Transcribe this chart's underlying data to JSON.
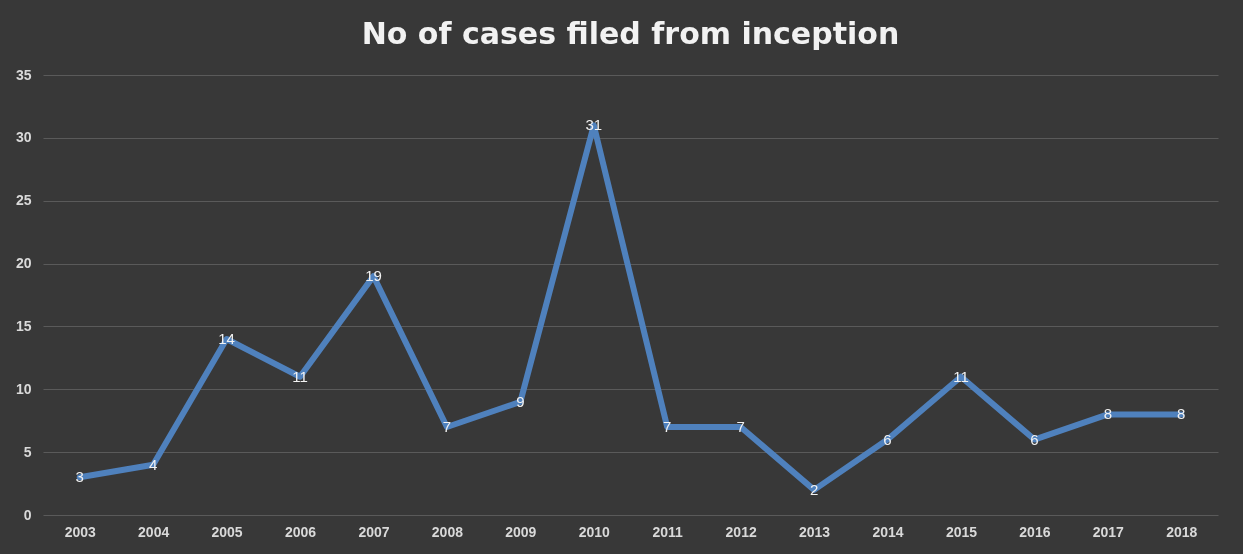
{
  "chart_data": {
    "type": "line",
    "title": "No of cases filed  from inception",
    "categories": [
      "2003",
      "2004",
      "2005",
      "2006",
      "2007",
      "2008",
      "2009",
      "2010",
      "2011",
      "2012",
      "2013",
      "2014",
      "2015",
      "2016",
      "2017",
      "2018"
    ],
    "series": [
      {
        "color": "#4f81bd",
        "values": [
          3,
          4,
          14,
          11,
          19,
          7,
          9,
          31,
          7,
          7,
          2,
          6,
          11,
          6,
          8,
          8
        ]
      }
    ],
    "ylim": [
      0,
      35
    ],
    "yticks": [
      0,
      5,
      10,
      15,
      20,
      25,
      30,
      35
    ],
    "grid": "y",
    "data_labels": true,
    "marker": "none",
    "line_style": "solid"
  }
}
